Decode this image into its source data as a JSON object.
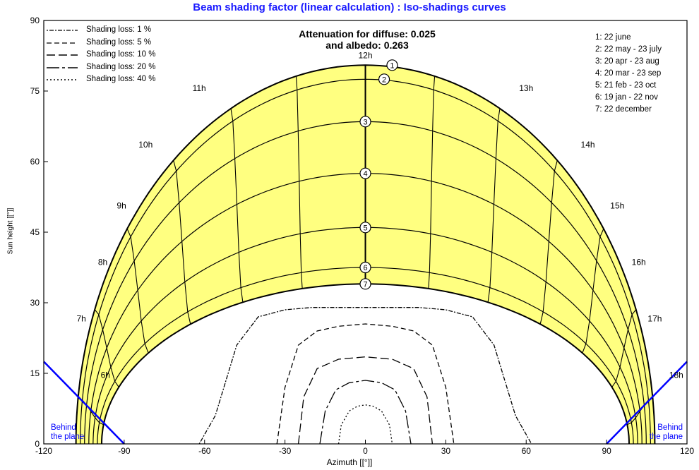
{
  "chart_data": {
    "type": "line",
    "title": "Beam shading factor (linear calculation) : Iso-shadings curves",
    "xlabel": "Azimuth [[°]]",
    "ylabel": "Sun height [[°]]",
    "xlim": [
      -120,
      120
    ],
    "ylim": [
      0,
      90
    ],
    "x_ticks": [
      -120,
      -90,
      -60,
      -30,
      0,
      30,
      60,
      90,
      120
    ],
    "y_ticks": [
      0,
      15,
      30,
      45,
      60,
      75,
      90
    ],
    "grid": false,
    "annotation_lines": [
      "Attenuation for diffuse: 0.025",
      "and albedo: 0.263"
    ],
    "behind_plane_label": "Behind the plane",
    "sun_paths": [
      {
        "id": "1",
        "label": "22 june",
        "max_height": 80.5
      },
      {
        "id": "2",
        "label": "22 may - 23 july",
        "max_height": 77.5
      },
      {
        "id": "3",
        "label": "20 apr - 23 aug",
        "max_height": 68.5
      },
      {
        "id": "4",
        "label": "20 mar - 23 sep",
        "max_height": 57.5
      },
      {
        "id": "5",
        "label": "21 feb - 23 oct",
        "max_height": 46.0
      },
      {
        "id": "6",
        "label": "19 jan - 22 nov",
        "max_height": 37.5
      },
      {
        "id": "7",
        "label": "22 december",
        "max_height": 34.0
      }
    ],
    "hour_labels": [
      {
        "label": "6h",
        "x": -97,
        "y": 14
      },
      {
        "label": "7h",
        "x": -106,
        "y": 26
      },
      {
        "label": "8h",
        "x": -98,
        "y": 38
      },
      {
        "label": "9h",
        "x": -91,
        "y": 50
      },
      {
        "label": "10h",
        "x": -82,
        "y": 63
      },
      {
        "label": "11h",
        "x": -62,
        "y": 75
      },
      {
        "label": "12h",
        "x": 0,
        "y": 82
      },
      {
        "label": "13h",
        "x": 60,
        "y": 75
      },
      {
        "label": "14h",
        "x": 83,
        "y": 63
      },
      {
        "label": "15h",
        "x": 94,
        "y": 50
      },
      {
        "label": "16h",
        "x": 102,
        "y": 38
      },
      {
        "label": "17h",
        "x": 108,
        "y": 26
      },
      {
        "label": "18h",
        "x": 116,
        "y": 14
      }
    ],
    "series": [
      {
        "name": "Shading loss: 1 %",
        "dash": "2,2,6,2",
        "x": [
          -62,
          -56,
          -48,
          -40,
          -30,
          -20,
          -10,
          0,
          10,
          20,
          30,
          40,
          48,
          56,
          62
        ],
        "y": [
          0,
          6,
          21,
          27,
          28.5,
          29,
          29,
          29,
          29,
          29,
          28.5,
          27,
          21,
          6,
          0
        ]
      },
      {
        "name": "Shading loss: 5 %",
        "dash": "7,4",
        "x": [
          -33,
          -30,
          -25,
          -18,
          -10,
          0,
          10,
          18,
          25,
          30,
          33
        ],
        "y": [
          0,
          12,
          21,
          24,
          25,
          25.5,
          25,
          24,
          21,
          12,
          0
        ]
      },
      {
        "name": "Shading loss: 10 %",
        "dash": "12,5",
        "x": [
          -25,
          -23,
          -18,
          -10,
          0,
          10,
          18,
          23,
          25
        ],
        "y": [
          0,
          10,
          16,
          18,
          18.5,
          18,
          16,
          10,
          0
        ]
      },
      {
        "name": "Shading loss: 20 %",
        "dash": "18,4,4,4",
        "x": [
          -17,
          -15,
          -11,
          -6,
          0,
          6,
          11,
          15,
          17
        ],
        "y": [
          0,
          7,
          11.5,
          13,
          13.5,
          13,
          11.5,
          7,
          0
        ]
      },
      {
        "name": "Shading loss: 40 %",
        "dash": "2,3",
        "x": [
          -10,
          -9,
          -6,
          -3,
          0,
          3,
          6,
          9,
          10
        ],
        "y": [
          0,
          4,
          7,
          8,
          8.3,
          8,
          7,
          4,
          0
        ]
      }
    ]
  },
  "colors": {
    "title": "#1a1aff",
    "yellow_band": "#ffff80",
    "behind_plane": "#0000ff",
    "axis": "#000000"
  }
}
